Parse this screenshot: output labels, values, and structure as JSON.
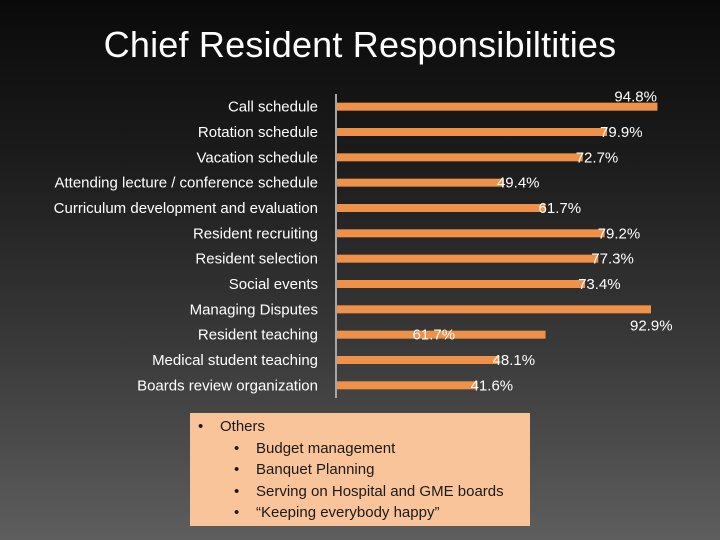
{
  "page": {
    "title": "Chief Resident Responsibiltities"
  },
  "colors": {
    "bar": "#f0914a",
    "axis": "#a6a6a6",
    "text": "#ffffff",
    "box_bg": "#f9c499"
  },
  "chart_data": {
    "type": "bar",
    "orientation": "horizontal",
    "title": "Chief Resident Responsibiltities",
    "categories": [
      "Call schedule",
      "Rotation schedule",
      "Vacation schedule",
      "Attending lecture / conference schedule",
      "Curriculum development and evaluation",
      "Resident recruiting",
      "Resident selection",
      "Social events",
      "Managing Disputes",
      "Resident teaching",
      "Medical student teaching",
      "Boards review organization"
    ],
    "values": [
      94.8,
      79.9,
      72.7,
      49.4,
      61.7,
      79.2,
      77.3,
      73.4,
      92.9,
      61.7,
      48.1,
      41.6
    ],
    "data_labels": [
      "94.8%",
      "79.9%",
      "72.7%",
      "49.4%",
      "61.7%",
      "79.2%",
      "77.3%",
      "73.4%",
      "92.9%",
      "61.7%",
      "48.1%",
      "41.6%"
    ],
    "xlim": [
      0,
      100
    ],
    "xlabel": "",
    "ylabel": "",
    "grid": false,
    "legend": "none"
  },
  "others": {
    "heading": "Others",
    "items": [
      "Budget management",
      "Banquet Planning",
      "Serving on Hospital and GME boards",
      "“Keeping everybody happy”"
    ]
  }
}
